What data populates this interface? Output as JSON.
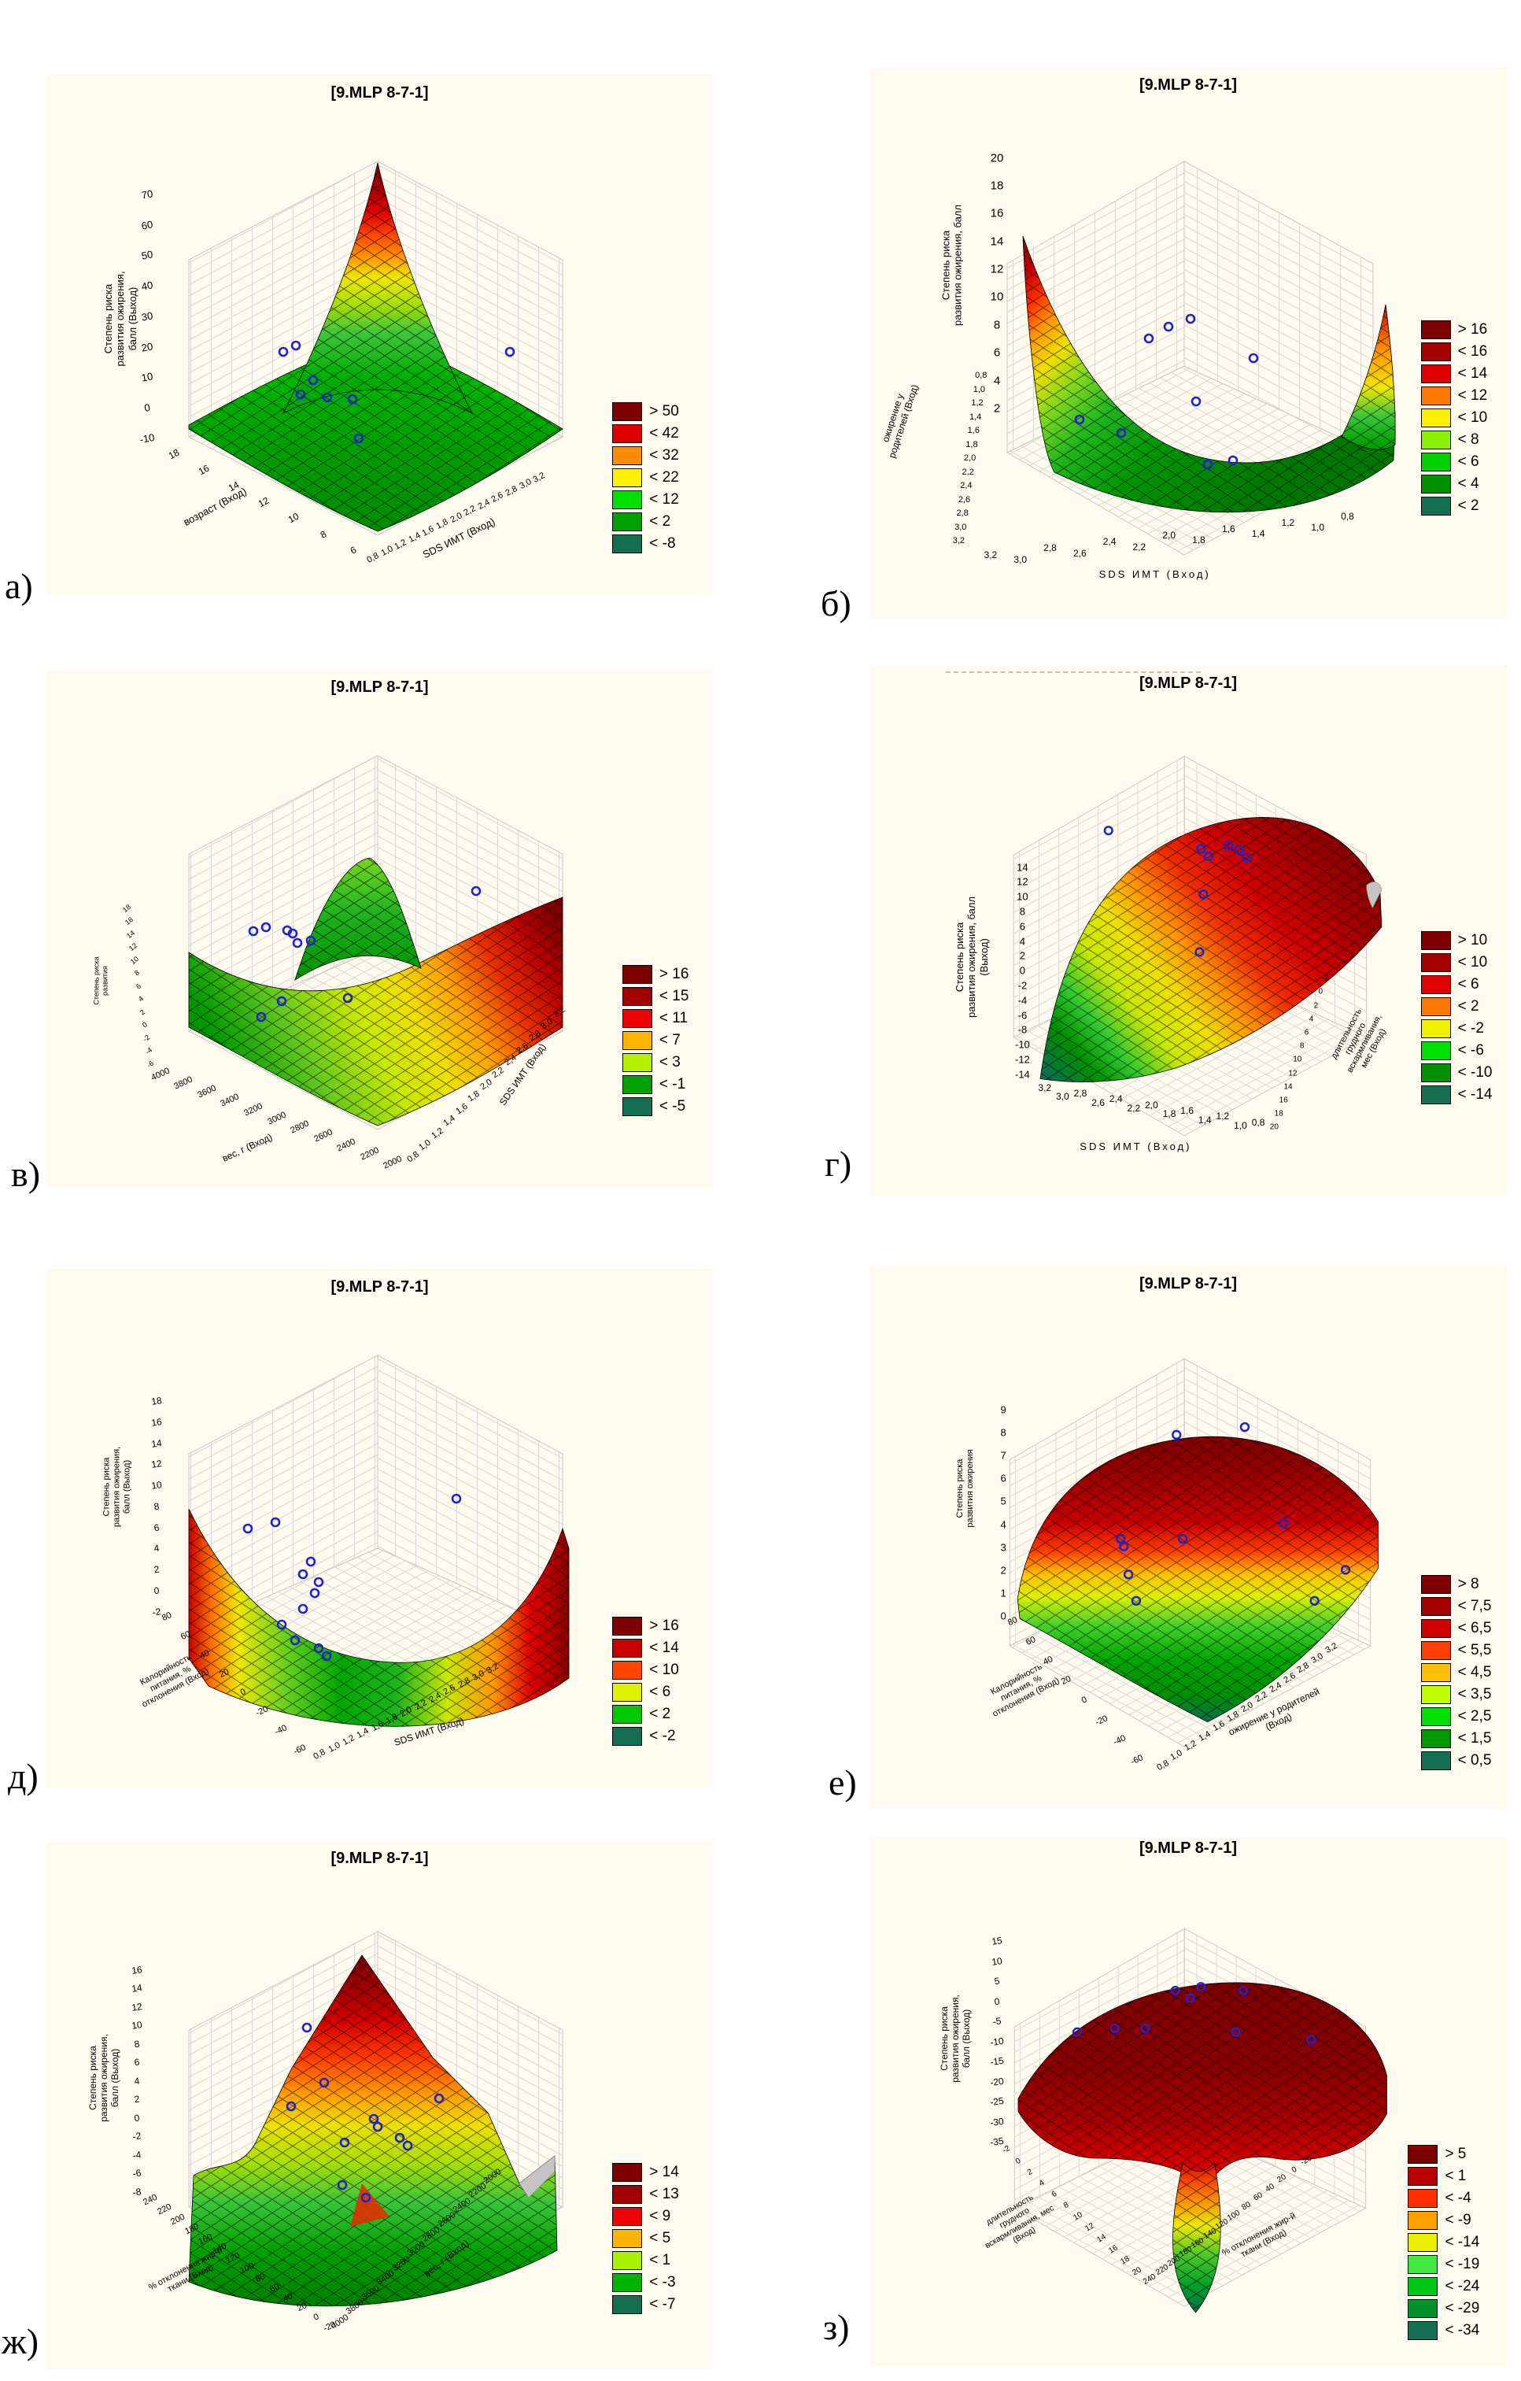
{
  "colors": {
    "panel_background": "#FFFAEE",
    "marker_stroke": "#2222CC",
    "surface_palette": [
      "#7E0000",
      "#A50000",
      "#D00000",
      "#FF4000",
      "#FFC000",
      "#BFFF00",
      "#00E000",
      "#009800",
      "#156F52"
    ]
  },
  "chart_data": [
    {
      "panel_letter": "а)",
      "type": "surface3d",
      "title": "[9.MLP 8-7-1]",
      "z_label": "Степень риска\nразвития ожирения,\nбалл (Выход)",
      "z_ticks": [
        "70",
        "60",
        "50",
        "40",
        "30",
        "20",
        "10",
        "0",
        "-10"
      ],
      "axis_x": {
        "label": "возраст (Вход)",
        "ticks": [
          "18",
          "16",
          "14",
          "12",
          "10",
          "8",
          "6"
        ]
      },
      "axis_y": {
        "label": "SDS ИМТ (Вход)",
        "ticks": [
          "0,8",
          "1,0",
          "1,2",
          "1,4",
          "1,6",
          "1,8",
          "2,0",
          "2,2",
          "2,4",
          "2,6",
          "2,8",
          "3,0",
          "3,2"
        ]
      },
      "legend": [
        {
          "label": "> 50",
          "color": "#7E0000"
        },
        {
          "label": "< 42",
          "color": "#E00000"
        },
        {
          "label": "< 32",
          "color": "#FF8C00"
        },
        {
          "label": "< 22",
          "color": "#FFF000"
        },
        {
          "label": "< 12",
          "color": "#00E000"
        },
        {
          "label": "< 2",
          "color": "#00A000"
        },
        {
          "label": "< -8",
          "color": "#156F52"
        }
      ],
      "markers": [
        [
          300,
          352
        ],
        [
          316,
          344
        ],
        [
          338,
          388
        ],
        [
          322,
          406
        ],
        [
          356,
          410
        ],
        [
          388,
          412
        ],
        [
          396,
          462
        ],
        [
          588,
          352
        ]
      ]
    },
    {
      "panel_letter": "б)",
      "type": "surface3d",
      "title": "[9.MLP 8-7-1]",
      "z_label": "Степень риска\nразвития ожирения, балл",
      "z_ticks": [
        "20",
        "18",
        "16",
        "14",
        "12",
        "10",
        "8",
        "6",
        "4",
        "2"
      ],
      "axis_x": {
        "label": "SDS ИМТ (Вход)",
        "ticks": [
          "3,2",
          "3,0",
          "2,8",
          "2,6",
          "2,4",
          "2,2",
          "2,0",
          "1,8",
          "1,6",
          "1,4",
          "1,2",
          "1,0",
          "0,8"
        ]
      },
      "axis_y": {
        "label": "ожирение у\nродителей (Вход)",
        "ticks": [
          "0,8",
          "1,0",
          "1,2",
          "1,4",
          "1,6",
          "1,8",
          "2,0",
          "2,2",
          "2,4",
          "2,6",
          "2,8",
          "3,0",
          "3,2"
        ]
      },
      "legend": [
        {
          "label": "> 16",
          "color": "#7E0000"
        },
        {
          "label": "< 16",
          "color": "#A50000"
        },
        {
          "label": "< 14",
          "color": "#E00000"
        },
        {
          "label": "< 12",
          "color": "#FF7800"
        },
        {
          "label": "< 10",
          "color": "#FFF000"
        },
        {
          "label": "< 8",
          "color": "#8CF000"
        },
        {
          "label": "< 6",
          "color": "#00D000"
        },
        {
          "label": "< 4",
          "color": "#009000"
        },
        {
          "label": "< 2",
          "color": "#156F52"
        }
      ],
      "markers": [
        [
          380,
          330
        ],
        [
          408,
          320
        ],
        [
          355,
          345
        ],
        [
          415,
          425
        ],
        [
          320,
          465
        ],
        [
          430,
          505
        ],
        [
          462,
          500
        ],
        [
          488,
          370
        ],
        [
          267,
          448
        ]
      ]
    },
    {
      "panel_letter": "в)",
      "type": "surface3d",
      "title": "[9.MLP 8-7-1]",
      "z_label": "Степень риска\nразвития",
      "z_ticks": [
        "18",
        "16",
        "14",
        "12",
        "10",
        "8",
        "6",
        "4",
        "2",
        "0",
        "-2",
        "-4",
        "-6"
      ],
      "axis_x": {
        "label": "вес, г (Вход)",
        "ticks": [
          "4000",
          "3800",
          "3600",
          "3400",
          "3200",
          "3000",
          "2800",
          "2600",
          "2400",
          "2200",
          "2000"
        ]
      },
      "axis_y": {
        "label": "SDS ИМТ (Вход)",
        "ticks": [
          "0,8",
          "1,0",
          "1,2",
          "1,4",
          "1,6",
          "1,8",
          "2,0",
          "2,2",
          "2,4",
          "2,6",
          "2,8",
          "3,0",
          "3,2"
        ]
      },
      "legend": [
        {
          "label": "> 16",
          "color": "#7E0000"
        },
        {
          "label": "< 15",
          "color": "#A00000"
        },
        {
          "label": "< 11",
          "color": "#F00000"
        },
        {
          "label": "< 7",
          "color": "#FFB400"
        },
        {
          "label": "< 3",
          "color": "#B4F000"
        },
        {
          "label": "< -1",
          "color": "#00A000"
        },
        {
          "label": "< -5",
          "color": "#156F52"
        }
      ],
      "markers": [
        [
          262,
          333
        ],
        [
          278,
          328
        ],
        [
          305,
          332
        ],
        [
          312,
          336
        ],
        [
          318,
          348
        ],
        [
          335,
          345
        ],
        [
          298,
          422
        ],
        [
          272,
          442
        ],
        [
          382,
          418
        ],
        [
          545,
          282
        ]
      ]
    },
    {
      "panel_letter": "г)",
      "type": "surface3d",
      "title": "[9.MLP 8-7-1]",
      "z_label": "Степень риска\nразвития ожирения, балл\n(Выход)",
      "z_ticks": [
        "14",
        "12",
        "10",
        "8",
        "6",
        "4",
        "2",
        "0",
        "-2",
        "-4",
        "-6",
        "-8",
        "-10",
        "-12",
        "-14"
      ],
      "axis_x": {
        "label": "SDS ИМТ (Вход)",
        "ticks": [
          "3,2",
          "3,0",
          "2,8",
          "2,6",
          "2,4",
          "2,2",
          "2,0",
          "1,8",
          "1,6",
          "1,4",
          "1,2",
          "1,0",
          "0,8"
        ]
      },
      "axis_y": {
        "label": "длительность\nгрудного\nвскармливания,\nмес (Вход)",
        "ticks": [
          "-2",
          "0",
          "2",
          "4",
          "6",
          "8",
          "10",
          "12",
          "14",
          "16",
          "18",
          "20"
        ]
      },
      "legend": [
        {
          "label": "> 10",
          "color": "#7E0000"
        },
        {
          "label": "< 10",
          "color": "#A50000"
        },
        {
          "label": "< 6",
          "color": "#E00000"
        },
        {
          "label": "< 2",
          "color": "#FF7800"
        },
        {
          "label": "< -2",
          "color": "#F0F000"
        },
        {
          "label": "< -6",
          "color": "#00E000"
        },
        {
          "label": "< -10",
          "color": "#009000"
        },
        {
          "label": "< -14",
          "color": "#156F52"
        }
      ],
      "markers": [
        [
          300,
          218
        ],
        [
          422,
          242
        ],
        [
          432,
          252
        ],
        [
          458,
          238
        ],
        [
          472,
          243
        ],
        [
          482,
          253
        ],
        [
          425,
          302
        ],
        [
          420,
          378
        ]
      ]
    },
    {
      "panel_letter": "д)",
      "type": "surface3d",
      "title": "[9.MLP 8-7-1]",
      "z_label": "Степень риска\nразвития ожирения,\nбалл (Выход)",
      "z_ticks": [
        "18",
        "16",
        "14",
        "12",
        "10",
        "8",
        "6",
        "4",
        "2",
        "0",
        "-2"
      ],
      "axis_x": {
        "label": "Калорийность\nпитания, %\nотклонения (Вход)",
        "ticks": [
          "80",
          "60",
          "40",
          "20",
          "0",
          "-20",
          "-40",
          "-60"
        ]
      },
      "axis_y": {
        "label": "SDS ИМТ (Вход)",
        "ticks": [
          "0,8",
          "1,0",
          "1,2",
          "1,4",
          "1,6",
          "1,8",
          "2,0",
          "2,2",
          "2,4",
          "2,6",
          "2,8",
          "3,0",
          "3,2"
        ]
      },
      "legend": [
        {
          "label": "> 16",
          "color": "#7E0000"
        },
        {
          "label": "< 14",
          "color": "#C80000"
        },
        {
          "label": "< 10",
          "color": "#FF4500"
        },
        {
          "label": "< 6",
          "color": "#E0F000"
        },
        {
          "label": "< 2",
          "color": "#00C800"
        },
        {
          "label": "< -2",
          "color": "#156F52"
        }
      ],
      "markers": [
        [
          255,
          330
        ],
        [
          290,
          322
        ],
        [
          335,
          372
        ],
        [
          325,
          388
        ],
        [
          345,
          398
        ],
        [
          340,
          412
        ],
        [
          325,
          432
        ],
        [
          298,
          452
        ],
        [
          315,
          472
        ],
        [
          345,
          482
        ],
        [
          355,
          492
        ],
        [
          520,
          292
        ]
      ]
    },
    {
      "panel_letter": "е)",
      "type": "surface3d",
      "title": "[9.MLP 8-7-1]",
      "z_label": "Степень риска\nразвития ожирения",
      "z_ticks": [
        "9",
        "8",
        "7",
        "6",
        "5",
        "4",
        "3",
        "2",
        "1",
        "0"
      ],
      "axis_x": {
        "label": "Калорийность\nпитания, %\nотклонения (Вход)",
        "ticks": [
          "80",
          "60",
          "40",
          "20",
          "0",
          "-20",
          "-40",
          "-60"
        ]
      },
      "axis_y": {
        "label": "ожирение у родителей\n(Вход)",
        "ticks": [
          "0,8",
          "1,0",
          "1,2",
          "1,4",
          "1,6",
          "1,8",
          "2,0",
          "2,2",
          "2,4",
          "2,6",
          "2,8",
          "3,0",
          "3,2"
        ]
      },
      "legend": [
        {
          "label": "> 8",
          "color": "#7E0000"
        },
        {
          "label": "< 7,5",
          "color": "#A50000"
        },
        {
          "label": "< 6,5",
          "color": "#D00000"
        },
        {
          "label": "< 5,5",
          "color": "#FF4000"
        },
        {
          "label": "< 4,5",
          "color": "#FFC000"
        },
        {
          "label": "< 3,5",
          "color": "#BFFF00"
        },
        {
          "label": "< 2,5",
          "color": "#00E000"
        },
        {
          "label": "< 1,5",
          "color": "#009800"
        },
        {
          "label": "< 0,5",
          "color": "#156F52"
        }
      ],
      "markers": [
        [
          390,
          218
        ],
        [
          478,
          208
        ],
        [
          318,
          352
        ],
        [
          322,
          362
        ],
        [
          328,
          398
        ],
        [
          338,
          432
        ],
        [
          398,
          352
        ],
        [
          528,
          332
        ],
        [
          608,
          392
        ],
        [
          568,
          432
        ]
      ]
    },
    {
      "panel_letter": "ж)",
      "type": "surface3d",
      "title": "[9.MLP 8-7-1]",
      "z_label": "Степень риска\nразвития ожирения,\nбалл (Выход)",
      "z_ticks": [
        "16",
        "14",
        "12",
        "10",
        "8",
        "6",
        "4",
        "2",
        "0",
        "-2",
        "-4",
        "-6",
        "-8"
      ],
      "axis_x": {
        "label": "% отклонения жир-й\nткани (Вход)",
        "ticks": [
          "240",
          "220",
          "200",
          "180",
          "160",
          "140",
          "120",
          "100",
          "80",
          "60",
          "40",
          "20",
          "0",
          "-20"
        ]
      },
      "axis_y": {
        "label": "вес, г (Вход)",
        "ticks": [
          "2000",
          "2200",
          "2400",
          "2600",
          "2800",
          "3000",
          "3200",
          "3400",
          "3600",
          "3800",
          "4000"
        ]
      },
      "legend": [
        {
          "label": "> 14",
          "color": "#7E0000"
        },
        {
          "label": "< 13",
          "color": "#A00000"
        },
        {
          "label": "< 9",
          "color": "#F00000"
        },
        {
          "label": "< 5",
          "color": "#FFB400"
        },
        {
          "label": "< 1",
          "color": "#A8F000"
        },
        {
          "label": "< -3",
          "color": "#00B400"
        },
        {
          "label": "< -7",
          "color": "#156F52"
        }
      ],
      "markers": [
        [
          330,
          232
        ],
        [
          352,
          302
        ],
        [
          310,
          332
        ],
        [
          415,
          348
        ],
        [
          420,
          358
        ],
        [
          378,
          378
        ],
        [
          448,
          372
        ],
        [
          458,
          382
        ],
        [
          498,
          322
        ],
        [
          375,
          432
        ],
        [
          405,
          448
        ]
      ]
    },
    {
      "panel_letter": "з)",
      "type": "surface3d",
      "title": "[9.MLP 8-7-1]",
      "z_label": "Степень риска\nразвития ожирения,\nбалл (Выход)",
      "z_ticks": [
        "15",
        "10",
        "5",
        "0",
        "-5",
        "-10",
        "-15",
        "-20",
        "-25",
        "-30",
        "-35"
      ],
      "axis_x": {
        "label": "длительность\nгрудного\nвскармливания, мес\n(Вход)",
        "ticks": [
          "-2",
          "0",
          "2",
          "4",
          "6",
          "8",
          "10",
          "12",
          "14",
          "16",
          "18",
          "20"
        ]
      },
      "axis_y": {
        "label": "% отклонения жир-й\nткани (Вход)",
        "ticks": [
          "240",
          "220",
          "200",
          "180",
          "160",
          "140",
          "120",
          "100",
          "80",
          "60",
          "40",
          "20",
          "0",
          "-20"
        ]
      },
      "legend": [
        {
          "label": "> 5",
          "color": "#7E0000"
        },
        {
          "label": "< 1",
          "color": "#B80000"
        },
        {
          "label": "< -4",
          "color": "#FF3000"
        },
        {
          "label": "< -9",
          "color": "#FFA000"
        },
        {
          "label": "< -14",
          "color": "#E8F000"
        },
        {
          "label": "< -19",
          "color": "#40E840"
        },
        {
          "label": "< -24",
          "color": "#00C818"
        },
        {
          "label": "< -29",
          "color": "#089028"
        },
        {
          "label": "< -34",
          "color": "#156F52"
        }
      ],
      "markers": [
        [
          388,
          202
        ],
        [
          408,
          212
        ],
        [
          422,
          197
        ],
        [
          478,
          202
        ],
        [
          308,
          252
        ],
        [
          348,
          252
        ],
        [
          468,
          257
        ],
        [
          568,
          267
        ],
        [
          258,
          257
        ]
      ]
    }
  ]
}
